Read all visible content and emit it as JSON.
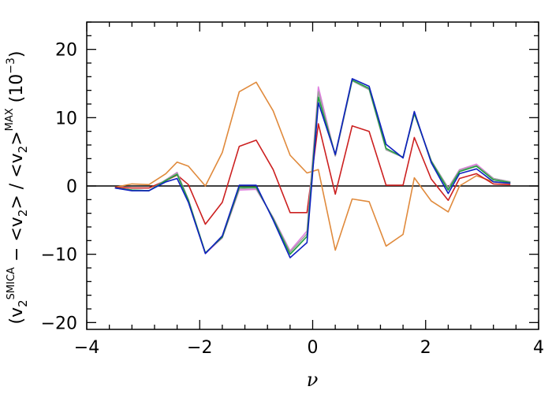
{
  "chart_data": {
    "type": "line",
    "xlabel": "ν",
    "ylabel": "(v2SMICA − <v2>) / <v2>MAX (10−3)",
    "ylabel_parts": {
      "open": "(v",
      "sub1": "2",
      "sup1": "SMICA",
      "minus": " − <v",
      "sub2": "2",
      "mid": "> / <v",
      "sub3": "2",
      "close": ">",
      "sup2": "MAX",
      "units_open": " (10",
      "units_sup": "−3",
      "units_close": ")"
    },
    "xlim": [
      -4,
      4
    ],
    "ylim": [
      -21,
      24
    ],
    "xticks": [
      -4,
      -2,
      0,
      2,
      4
    ],
    "xtick_labels": [
      "−4",
      "−2",
      "0",
      "2",
      "4"
    ],
    "yticks": [
      -20,
      -10,
      0,
      10,
      20
    ],
    "ytick_labels": [
      "−20",
      "−10",
      "0",
      "10",
      "20"
    ],
    "x_minor_step": 0.4,
    "y_minor_step": 2,
    "grid": false,
    "zero_line": true,
    "x": [
      -3.5,
      -3.2,
      -2.9,
      -2.6,
      -2.4,
      -2.2,
      -1.9,
      -1.6,
      -1.3,
      -1.0,
      -0.7,
      -0.4,
      -0.1,
      0.1,
      0.4,
      0.7,
      1.0,
      1.3,
      1.6,
      1.8,
      2.1,
      2.4,
      2.6,
      2.9,
      3.2,
      3.5
    ],
    "series": [
      {
        "color": "#e08a3c",
        "values": [
          -0.2,
          0.3,
          0.2,
          1.8,
          3.5,
          2.9,
          0.0,
          4.9,
          13.8,
          15.2,
          11.0,
          4.5,
          1.9,
          2.4,
          -9.4,
          -1.9,
          -2.3,
          -8.8,
          -7.1,
          1.2,
          -2.2,
          -3.8,
          0.0,
          1.5,
          0.6,
          0.4
        ]
      },
      {
        "color": "#cc2020",
        "values": [
          -0.2,
          -0.3,
          -0.3,
          0.8,
          1.6,
          0.2,
          -5.6,
          -2.4,
          5.8,
          6.7,
          2.4,
          -3.9,
          -3.9,
          9.1,
          -1.2,
          8.8,
          8.0,
          0.1,
          0.1,
          7.1,
          1.0,
          -2.1,
          1.1,
          1.8,
          0.3,
          0.2
        ]
      },
      {
        "color": "#e080e0",
        "values": [
          -0.3,
          -0.6,
          -0.7,
          0.9,
          2.0,
          -2.0,
          -9.9,
          -7.6,
          -0.6,
          -0.5,
          -4.6,
          -9.5,
          -6.6,
          14.5,
          4.4,
          15.4,
          14.2,
          5.4,
          4.2,
          10.6,
          3.7,
          -0.3,
          2.4,
          3.2,
          1.1,
          0.6
        ]
      },
      {
        "color": "#a0a0a0",
        "values": [
          -0.3,
          -0.6,
          -0.7,
          0.9,
          1.9,
          -2.0,
          -9.8,
          -7.5,
          -0.4,
          -0.3,
          -4.7,
          -9.7,
          -7.0,
          13.8,
          4.4,
          15.4,
          14.1,
          5.3,
          4.2,
          10.6,
          3.7,
          -0.3,
          2.3,
          3.0,
          1.1,
          0.6
        ]
      },
      {
        "color": "#20a040",
        "values": [
          -0.3,
          -0.6,
          -0.7,
          0.8,
          1.7,
          -2.1,
          -9.8,
          -7.5,
          -0.2,
          -0.2,
          -4.8,
          -10.0,
          -7.4,
          13.0,
          4.6,
          15.5,
          14.3,
          5.5,
          4.2,
          10.6,
          3.6,
          -0.6,
          2.1,
          2.9,
          0.9,
          0.5
        ]
      },
      {
        "color": "#1020c0",
        "values": [
          -0.3,
          -0.7,
          -0.7,
          0.6,
          1.1,
          -2.4,
          -9.9,
          -7.3,
          0.1,
          0.1,
          -5.0,
          -10.5,
          -8.3,
          12.2,
          4.6,
          15.7,
          14.6,
          6.1,
          4.1,
          10.9,
          3.4,
          -1.1,
          1.8,
          2.5,
          0.6,
          0.4
        ]
      }
    ]
  }
}
